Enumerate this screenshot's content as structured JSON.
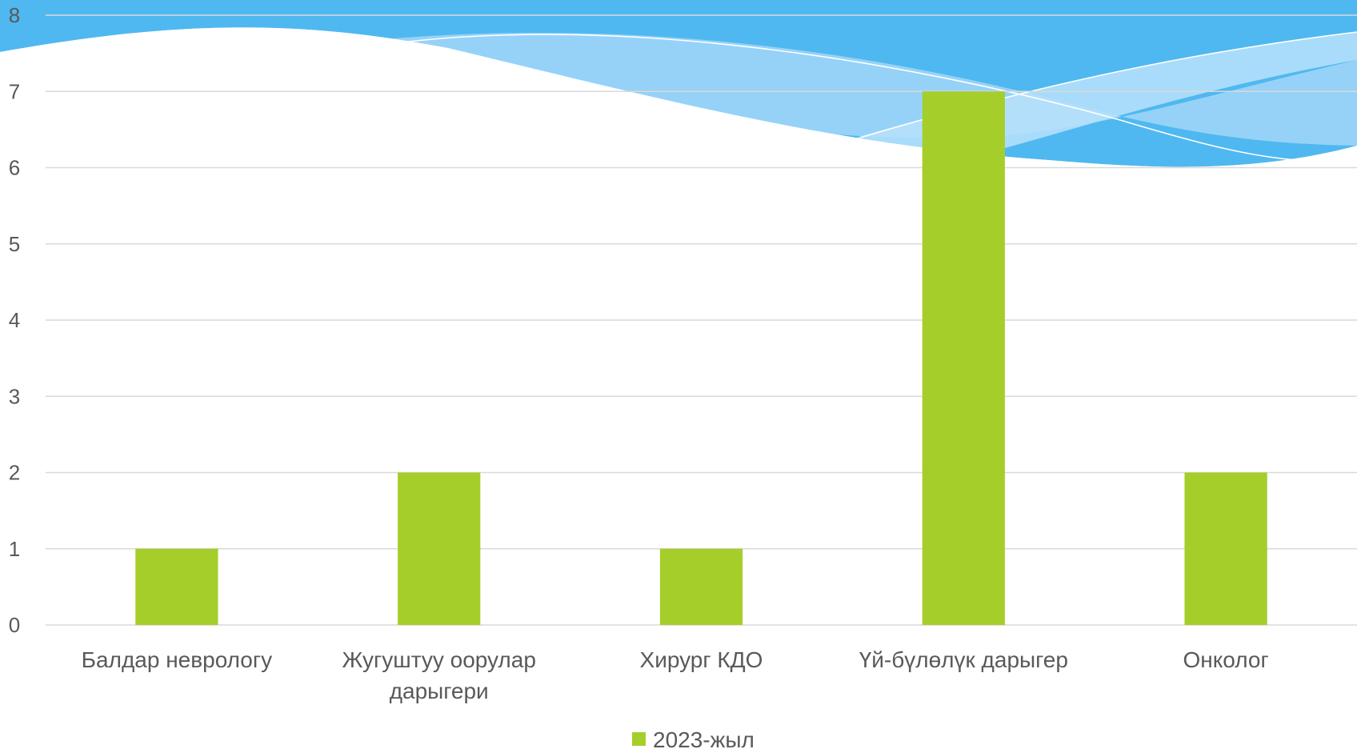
{
  "chart_data": {
    "type": "bar",
    "categories": [
      [
        "Балдар неврологу"
      ],
      [
        "Жугуштуу оорулар",
        "дарыгери"
      ],
      [
        "Хирург  КДО"
      ],
      [
        "Үй-бүлөлүк дарыгер"
      ],
      [
        "Онколог"
      ]
    ],
    "series": [
      {
        "name": "2023-жыл",
        "values": [
          1,
          2,
          1,
          7,
          2
        ],
        "color": "#a6ce2a"
      }
    ],
    "ylim": [
      0,
      8
    ],
    "yticks": [
      "0",
      "1",
      "2",
      "3",
      "4",
      "5",
      "6",
      "7",
      "8"
    ],
    "grid": true,
    "legend": "bottom",
    "colors": {
      "grid": "#d9d9d9",
      "text": "#595959",
      "wave": "#4fb8f0",
      "wave_light": "#a8daf8"
    }
  }
}
